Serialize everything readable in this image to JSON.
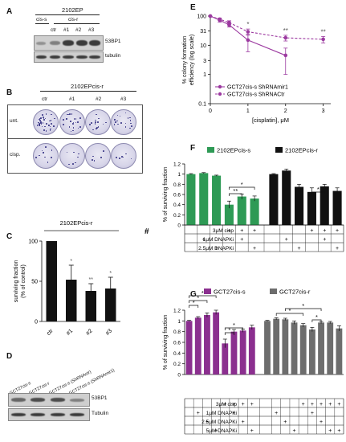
{
  "panelA": {
    "label": "A",
    "cell_line": "2102EP",
    "group_sensitive": "cis-s",
    "group_resistant": "cis-r",
    "lanes": [
      "ctr",
      "#1",
      "#2",
      "#3"
    ],
    "bands": [
      "53BP1",
      "tubulin"
    ]
  },
  "panelB": {
    "label": "B",
    "title": "2102EPcis-r",
    "columns": [
      "ctr",
      "#1",
      "#2",
      "#3"
    ],
    "rows": [
      "unt.",
      "cisp."
    ]
  },
  "panelC": {
    "label": "C",
    "chart_data": {
      "type": "bar",
      "title": "2102EPcis-r",
      "categories": [
        "ctr",
        "#1",
        "#2",
        "#3"
      ],
      "values": [
        100,
        52,
        38,
        41
      ],
      "errors": [
        0,
        18,
        9,
        14
      ],
      "significance": [
        "",
        "*",
        "**",
        "*"
      ],
      "ylabel_line1": "surviving fraction",
      "ylabel_line2": "(% of control)",
      "yticks": [
        0,
        50,
        100
      ],
      "ylim": [
        0,
        100
      ]
    }
  },
  "panelD": {
    "label": "D",
    "lanes": [
      "GCT27cis-s",
      "GCT27cis-r",
      "GCT27cis-s (ShRNActr)",
      "GCT27cis-s (ShRNAmir1)"
    ],
    "bands": [
      "53BP1",
      "Tubulin"
    ]
  },
  "panelE": {
    "label": "E",
    "chart_data": {
      "type": "line",
      "xlabel": "[cisplatin], μM",
      "ylabel_line1": "% colony formation",
      "ylabel_line2": "efficiency (log scale)",
      "log_y": true,
      "ylim": [
        0.1,
        100
      ],
      "yticks": [
        "0.1",
        "1",
        "3",
        "10",
        "31",
        "100"
      ],
      "xticks": [
        0,
        1,
        2,
        3
      ],
      "xlim": [
        0,
        3.2
      ],
      "series": [
        {
          "name": "GCT27cis-s ShRNAmir1",
          "style": "solid",
          "x": [
            0,
            0.25,
            0.5,
            1,
            2
          ],
          "y": [
            100,
            72,
            50,
            15,
            4.5
          ],
          "err": [
            0,
            10,
            8,
            9,
            3.5
          ]
        },
        {
          "name": "GCT27cis-s ShRNACtr",
          "style": "dashed",
          "x": [
            0,
            0.25,
            0.5,
            1,
            2,
            3
          ],
          "y": [
            100,
            78,
            60,
            29,
            18,
            16
          ],
          "err": [
            0,
            8,
            9,
            7,
            4,
            4
          ]
        }
      ],
      "significance": [
        {
          "x": 1,
          "mark": "*"
        },
        {
          "x": 2,
          "mark": "**"
        },
        {
          "x": 3,
          "mark": "**"
        }
      ]
    }
  },
  "panelF": {
    "label": "F",
    "chart_data": {
      "type": "bar",
      "ylabel": "% of surviving fraction",
      "yticks": [
        "0",
        "0.2",
        "0.4",
        "0.6",
        "0.8",
        "1",
        "1.2"
      ],
      "ylim": [
        0,
        1.2
      ],
      "legend": [
        {
          "name": "2102EPcis-s",
          "color": "#2e9a55"
        },
        {
          "name": "2102EPcis-r",
          "color": "#111111"
        }
      ],
      "groups": [
        {
          "name": "2102EPcis-s",
          "color": "#2e9a55",
          "values": [
            1.0,
            1.02,
            0.97,
            0.4,
            0.56,
            0.52
          ],
          "errors": [
            0.01,
            0.01,
            0.01,
            0.07,
            0.05,
            0.05
          ]
        },
        {
          "name": "2102EPcis-r",
          "color": "#111111",
          "values": [
            1.0,
            1.07,
            0.75,
            0.65,
            0.76,
            0.67
          ],
          "errors": [
            0.01,
            0.03,
            0.05,
            0.08,
            0.04,
            0.06
          ]
        }
      ],
      "table_rows": [
        {
          "label": "3μM cisp",
          "marks": [
            "",
            "",
            "",
            "+",
            "+",
            "+",
            "",
            "",
            "",
            "+",
            "+",
            "+"
          ]
        },
        {
          "label": "1μM DNAPKi",
          "marks": [
            "",
            "+",
            "",
            "",
            "+",
            "",
            "",
            "+",
            "",
            "",
            "+",
            ""
          ]
        },
        {
          "label": "2.5μM DNAPKi",
          "marks": [
            "",
            "",
            "+",
            "",
            "",
            "+",
            "",
            "",
            "+",
            "",
            "",
            "+"
          ]
        }
      ],
      "hash_label": "#"
    }
  },
  "panelG": {
    "label": "G",
    "chart_data": {
      "type": "bar",
      "ylabel": "% of surviving fraction",
      "yticks": [
        "0",
        "0.2",
        "0.4",
        "0.6",
        "0.8",
        "1",
        "1.2"
      ],
      "ylim": [
        0,
        1.2
      ],
      "legend": [
        {
          "name": "GCT27cis-s",
          "color": "#8b2f8f"
        },
        {
          "name": "GCT27cis-r",
          "color": "#6d6d6d"
        }
      ],
      "groups": [
        {
          "name": "GCT27cis-s",
          "color": "#8b2f8f",
          "values": [
            1.0,
            1.06,
            1.11,
            1.16,
            0.58,
            0.8,
            0.82,
            0.88
          ],
          "errors": [
            0.01,
            0.02,
            0.04,
            0.04,
            0.08,
            0.04,
            0.03,
            0.04
          ]
        },
        {
          "name": "GCT27cis-r",
          "color": "#6d6d6d",
          "values": [
            1.0,
            1.04,
            1.03,
            0.97,
            0.92,
            0.84,
            0.97,
            0.97,
            0.86
          ],
          "errors": [
            0.01,
            0.02,
            0.02,
            0.03,
            0.03,
            0.04,
            0.02,
            0.02,
            0.05
          ]
        }
      ],
      "table_rows": [
        {
          "label": "3μM cisp",
          "marks": [
            "",
            "",
            "",
            "",
            "+",
            "+",
            "+",
            "+",
            "",
            "",
            "",
            "",
            "+",
            "+",
            "+",
            "+",
            "+"
          ]
        },
        {
          "label": "1μM DNAPKi",
          "marks": [
            "",
            "+",
            "",
            "",
            "",
            "+",
            "",
            "",
            "",
            "+",
            "",
            "",
            "",
            "+",
            "",
            "",
            ""
          ]
        },
        {
          "label": "2.5μM DNAPKi",
          "marks": [
            "",
            "",
            "+",
            "",
            "",
            "",
            "+",
            "",
            "",
            "",
            "+",
            "",
            "",
            "",
            "+",
            "",
            ""
          ]
        },
        {
          "label": "5μM DNAPKi",
          "marks": [
            "",
            "",
            "",
            "+",
            "",
            "",
            "",
            "+",
            "",
            "",
            "",
            "+",
            "",
            "",
            "",
            "+",
            "+"
          ]
        }
      ]
    }
  }
}
